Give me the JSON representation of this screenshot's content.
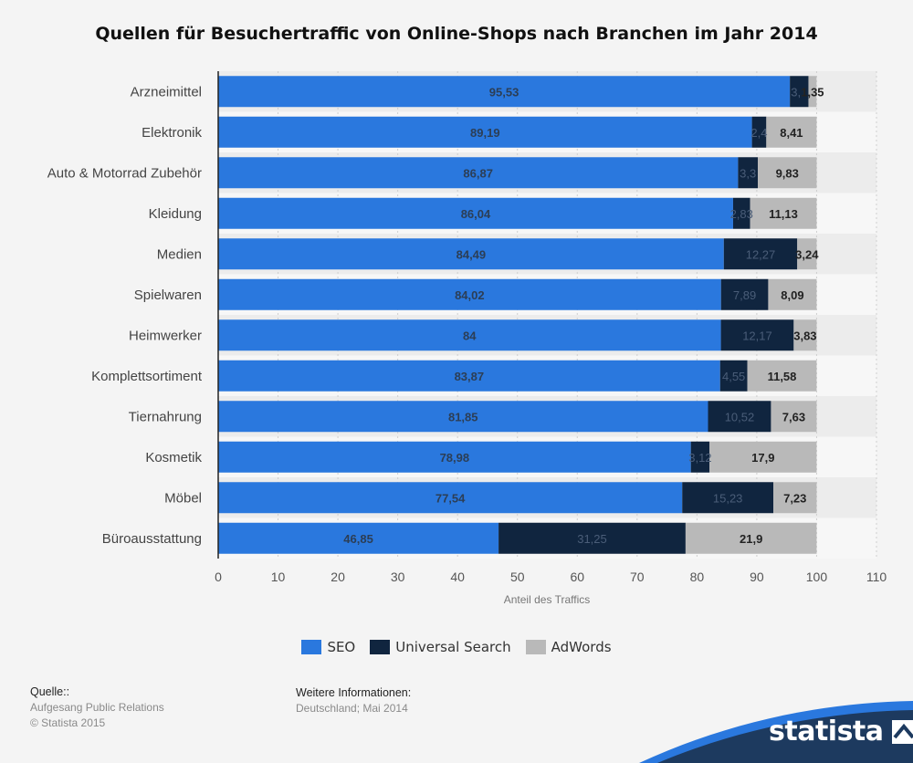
{
  "chart_data": {
    "type": "bar",
    "orientation": "horizontal",
    "stacked": true,
    "title": "Quellen für Besuchertraffic von Online-Shops nach Branchen im Jahr 2014",
    "xlabel": "Anteil des Traffics",
    "xlim": [
      0,
      110
    ],
    "xticks": [
      0,
      10,
      20,
      30,
      40,
      50,
      60,
      70,
      80,
      90,
      100,
      110
    ],
    "grid": true,
    "legend_position": "bottom",
    "categories": [
      "Arzneimittel",
      "Elektronik",
      "Auto & Motorrad Zubehör",
      "Kleidung",
      "Medien",
      "Spielwaren",
      "Heimwerker",
      "Komplettsortiment",
      "Tiernahrung",
      "Kosmetik",
      "Möbel",
      "Büroausstattung"
    ],
    "series": [
      {
        "name": "SEO",
        "color": "#2a78de",
        "values": [
          95.53,
          89.19,
          86.87,
          86.04,
          84.49,
          84.02,
          84,
          83.87,
          81.85,
          78.98,
          77.54,
          46.85
        ],
        "labels": [
          "95,53",
          "89,19",
          "86,87",
          "86,04",
          "84,49",
          "84,02",
          "84",
          "83,87",
          "81,85",
          "78,98",
          "77,54",
          "46,85"
        ]
      },
      {
        "name": "Universal Search",
        "color": "#10253f",
        "values": [
          3.1,
          2.4,
          3.3,
          2.83,
          12.27,
          7.89,
          12.17,
          4.55,
          10.52,
          3.12,
          15.23,
          31.25
        ],
        "labels": [
          "3,1",
          "2,4",
          "3,3",
          "2,83",
          "12,27",
          "7,89",
          "12,17",
          "4,55",
          "10,52",
          "3,12",
          "15,23",
          "31,25"
        ]
      },
      {
        "name": "AdWords",
        "color": "#b9b9b9",
        "values": [
          1.35,
          8.41,
          9.83,
          11.13,
          3.24,
          8.09,
          3.83,
          11.58,
          7.63,
          17.9,
          7.23,
          21.9
        ],
        "labels": [
          "1,35",
          "8,41",
          "9,83",
          "11,13",
          "3,24",
          "8,09",
          "3,83",
          "11,58",
          "7,63",
          "17,9",
          "7,23",
          "21,9"
        ]
      }
    ]
  },
  "footer": {
    "source_heading": "Quelle::",
    "source_lines": [
      "Aufgesang Public Relations",
      "© Statista 2015"
    ],
    "info_heading": "Weitere Informationen:",
    "info_text": "Deutschland; Mai 2014"
  },
  "brand": {
    "name": "statista",
    "band_color": "#1d3a5f",
    "accent_color": "#2a78de"
  }
}
